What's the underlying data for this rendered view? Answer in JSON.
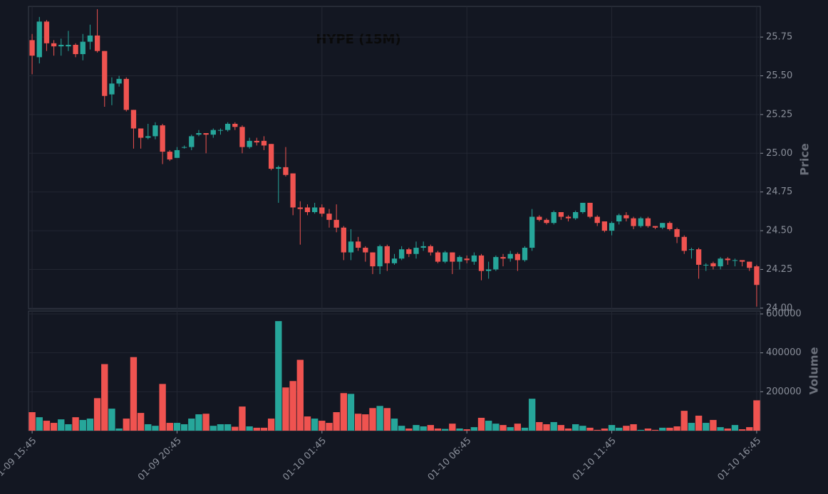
{
  "chart_data": {
    "type": "candlestick",
    "title": "HYPE (15M)",
    "ylabel": "Price",
    "volume_label": "Volume",
    "up_color": "#26a69a",
    "down_color": "#ef5350",
    "grid": true,
    "categories": [
      "01-09 15:45",
      null,
      null,
      null,
      null,
      null,
      null,
      null,
      null,
      null,
      null,
      null,
      null,
      null,
      null,
      null,
      null,
      null,
      null,
      null,
      "01-09 20:45",
      null,
      null,
      null,
      null,
      null,
      null,
      null,
      null,
      null,
      null,
      null,
      null,
      null,
      null,
      null,
      null,
      null,
      null,
      null,
      "01-10 01:45",
      null,
      null,
      null,
      null,
      null,
      null,
      null,
      null,
      null,
      null,
      null,
      null,
      null,
      null,
      null,
      null,
      null,
      null,
      null,
      "01-10 06:45",
      null,
      null,
      null,
      null,
      null,
      null,
      null,
      null,
      null,
      null,
      null,
      null,
      null,
      null,
      null,
      null,
      null,
      null,
      null,
      "01-10 11:45",
      null,
      null,
      null,
      null,
      null,
      null,
      null,
      null,
      null,
      null,
      null,
      null,
      null,
      null,
      null,
      null,
      null,
      null,
      null,
      "01-10 16:45"
    ],
    "open": [
      25.73,
      25.62,
      25.85,
      25.71,
      25.69,
      25.69,
      25.7,
      25.64,
      25.72,
      25.76,
      25.66,
      25.38,
      25.45,
      25.48,
      25.28,
      25.16,
      25.1,
      25.11,
      25.18,
      25.01,
      24.97,
      25.04,
      25.04,
      25.12,
      25.13,
      25.12,
      25.15,
      25.15,
      25.19,
      25.17,
      25.04,
      25.08,
      25.08,
      25.06,
      24.9,
      24.91,
      24.87,
      24.65,
      24.65,
      24.62,
      24.65,
      24.61,
      24.57,
      24.52,
      24.36,
      24.43,
      24.39,
      24.36,
      24.27,
      24.4,
      24.29,
      24.32,
      24.38,
      24.35,
      24.39,
      24.4,
      24.36,
      24.3,
      24.36,
      24.3,
      24.32,
      24.3,
      24.34,
      24.24,
      24.25,
      24.33,
      24.32,
      24.35,
      24.31,
      24.39,
      24.59,
      24.57,
      24.55,
      24.62,
      24.59,
      24.58,
      24.62,
      24.68,
      24.59,
      24.56,
      24.5,
      24.56,
      24.6,
      24.58,
      24.53,
      24.58,
      24.53,
      24.52,
      24.55,
      24.51,
      24.46,
      24.38,
      24.38,
      24.28,
      24.29,
      24.27,
      24.32,
      24.31,
      24.31,
      24.3,
      24.27
    ],
    "high": [
      25.77,
      25.88,
      25.86,
      25.73,
      25.74,
      25.79,
      25.71,
      25.77,
      25.83,
      25.93,
      25.66,
      25.49,
      25.5,
      25.49,
      25.28,
      25.16,
      25.19,
      25.2,
      25.19,
      25.02,
      25.04,
      25.05,
      25.12,
      25.15,
      25.13,
      25.16,
      25.16,
      25.2,
      25.2,
      25.18,
      25.1,
      25.1,
      25.11,
      25.06,
      24.92,
      25.04,
      24.87,
      24.69,
      24.67,
      24.68,
      24.67,
      24.64,
      24.67,
      24.53,
      24.51,
      24.46,
      24.4,
      24.36,
      24.41,
      24.41,
      24.35,
      24.4,
      24.39,
      24.43,
      24.43,
      24.41,
      24.37,
      24.37,
      24.36,
      24.34,
      24.34,
      24.36,
      24.35,
      24.3,
      24.34,
      24.35,
      24.37,
      24.36,
      24.4,
      24.64,
      24.6,
      24.58,
      24.63,
      24.62,
      24.6,
      24.63,
      24.68,
      24.68,
      24.6,
      24.56,
      24.56,
      24.61,
      24.62,
      24.59,
      24.59,
      24.59,
      24.53,
      24.55,
      24.56,
      24.52,
      24.47,
      24.39,
      24.39,
      24.29,
      24.3,
      24.33,
      24.33,
      24.32,
      24.31,
      24.3,
      24.28
    ],
    "low": [
      25.51,
      25.58,
      25.66,
      25.63,
      25.63,
      25.66,
      25.62,
      25.6,
      25.67,
      25.65,
      25.3,
      25.31,
      25.43,
      25.27,
      25.03,
      25.03,
      25.09,
      25.09,
      24.93,
      24.95,
      24.97,
      25.03,
      25.02,
      25.11,
      25.0,
      25.1,
      25.12,
      25.14,
      25.15,
      25.0,
      25.03,
      25.05,
      25.02,
      24.89,
      24.68,
      24.85,
      24.6,
      24.41,
      24.6,
      24.61,
      24.59,
      24.52,
      24.49,
      24.31,
      24.31,
      24.37,
      24.3,
      24.22,
      24.22,
      24.24,
      24.28,
      24.31,
      24.33,
      24.32,
      24.37,
      24.34,
      24.29,
      24.29,
      24.22,
      24.25,
      24.29,
      24.28,
      24.18,
      24.19,
      24.24,
      24.27,
      24.3,
      24.24,
      24.3,
      24.37,
      24.56,
      24.54,
      24.54,
      24.57,
      24.56,
      24.57,
      24.61,
      24.58,
      24.53,
      24.49,
      24.47,
      24.54,
      24.56,
      24.51,
      24.52,
      24.52,
      24.51,
      24.51,
      24.5,
      24.42,
      24.35,
      24.32,
      24.19,
      24.24,
      24.25,
      24.25,
      24.28,
      24.27,
      24.27,
      24.24,
      24.01
    ],
    "close": [
      25.63,
      25.85,
      25.71,
      25.69,
      25.7,
      25.7,
      25.64,
      25.72,
      25.76,
      25.66,
      25.37,
      25.45,
      25.48,
      25.28,
      25.16,
      25.1,
      25.11,
      25.18,
      25.01,
      24.96,
      25.02,
      25.04,
      25.11,
      25.13,
      25.12,
      25.15,
      25.15,
      25.19,
      25.17,
      25.04,
      25.08,
      25.07,
      25.05,
      24.9,
      24.91,
      24.86,
      24.65,
      24.64,
      24.62,
      24.65,
      24.61,
      24.57,
      24.52,
      24.36,
      24.43,
      24.39,
      24.36,
      24.27,
      24.4,
      24.29,
      24.32,
      24.38,
      24.35,
      24.39,
      24.4,
      24.36,
      24.3,
      24.36,
      24.3,
      24.33,
      24.31,
      24.34,
      24.24,
      24.25,
      24.33,
      24.32,
      24.35,
      24.31,
      24.39,
      24.59,
      24.57,
      24.55,
      24.62,
      24.59,
      24.58,
      24.62,
      24.68,
      24.59,
      24.55,
      24.5,
      24.55,
      24.6,
      24.58,
      24.53,
      24.58,
      24.53,
      24.52,
      24.55,
      24.51,
      24.46,
      24.37,
      24.38,
      24.28,
      24.28,
      24.27,
      24.32,
      24.31,
      24.31,
      24.3,
      24.26,
      24.15
    ],
    "volume": [
      95000,
      69000,
      51000,
      40000,
      58000,
      33000,
      69000,
      55000,
      62000,
      167000,
      342000,
      113000,
      11000,
      62000,
      378000,
      91000,
      33000,
      25000,
      240000,
      40000,
      40000,
      33000,
      62000,
      84000,
      87000,
      25000,
      33000,
      33000,
      20000,
      124000,
      22000,
      15000,
      15000,
      62000,
      563000,
      222000,
      255000,
      364000,
      73000,
      62000,
      51000,
      40000,
      95000,
      193000,
      189000,
      87000,
      84000,
      116000,
      127000,
      116000,
      62000,
      25000,
      11000,
      29000,
      22000,
      29000,
      11000,
      9000,
      36000,
      11000,
      7000,
      18000,
      66000,
      51000,
      36000,
      29000,
      18000,
      36000,
      15000,
      164000,
      44000,
      33000,
      44000,
      29000,
      11000,
      33000,
      25000,
      15000,
      4000,
      11000,
      29000,
      15000,
      25000,
      33000,
      4000,
      11000,
      4000,
      15000,
      15000,
      22000,
      102000,
      40000,
      77000,
      40000,
      55000,
      18000,
      11000,
      29000,
      7000,
      18000,
      156000
    ],
    "ylim": [
      23.995,
      25.948
    ],
    "yticks": [
      {
        "value": 24.0,
        "label": "24.00"
      },
      {
        "value": 24.25,
        "label": "24.25"
      },
      {
        "value": 24.5,
        "label": "24.50"
      },
      {
        "value": 24.75,
        "label": "24.75"
      },
      {
        "value": 25.0,
        "label": "25.00"
      },
      {
        "value": 25.25,
        "label": "25.25"
      },
      {
        "value": 25.5,
        "label": "25.50"
      },
      {
        "value": 25.75,
        "label": "25.75"
      }
    ],
    "volume_ylim": [
      0,
      614600
    ],
    "volume_yticks": [
      200000,
      400000,
      600000
    ]
  }
}
